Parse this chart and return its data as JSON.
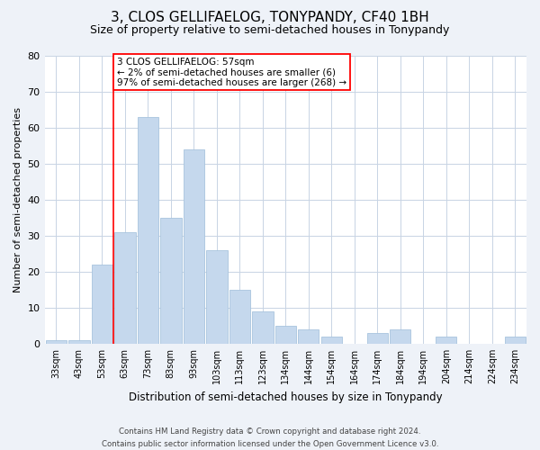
{
  "title": "3, CLOS GELLIFAELOG, TONYPANDY, CF40 1BH",
  "subtitle": "Size of property relative to semi-detached houses in Tonypandy",
  "xlabel": "Distribution of semi-detached houses by size in Tonypandy",
  "ylabel": "Number of semi-detached properties",
  "categories": [
    "33sqm",
    "43sqm",
    "53sqm",
    "63sqm",
    "73sqm",
    "83sqm",
    "93sqm",
    "103sqm",
    "113sqm",
    "123sqm",
    "134sqm",
    "144sqm",
    "154sqm",
    "164sqm",
    "174sqm",
    "184sqm",
    "194sqm",
    "204sqm",
    "214sqm",
    "224sqm",
    "234sqm"
  ],
  "values": [
    1,
    1,
    22,
    31,
    63,
    35,
    54,
    26,
    15,
    9,
    5,
    4,
    2,
    0,
    3,
    4,
    0,
    2,
    0,
    0,
    2
  ],
  "bar_color": "#c5d8ed",
  "bar_edge_color": "#a8c4de",
  "vline_x": 2.5,
  "vline_color": "red",
  "annotation_text": "3 CLOS GELLIFAELOG: 57sqm\n← 2% of semi-detached houses are smaller (6)\n97% of semi-detached houses are larger (268) →",
  "annotation_box_edge": "red",
  "ylim": [
    0,
    80
  ],
  "yticks": [
    0,
    10,
    20,
    30,
    40,
    50,
    60,
    70,
    80
  ],
  "footer_line1": "Contains HM Land Registry data © Crown copyright and database right 2024.",
  "footer_line2": "Contains public sector information licensed under the Open Government Licence v3.0.",
  "bg_color": "#eef2f8",
  "plot_bg_color": "#ffffff",
  "grid_color": "#c8d4e4"
}
